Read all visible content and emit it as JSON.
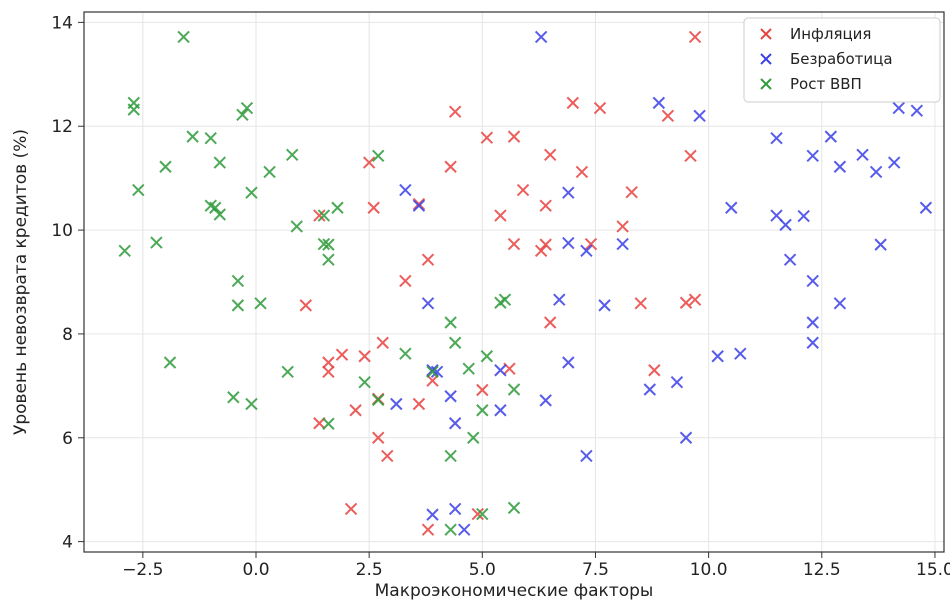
{
  "chart_data": {
    "type": "scatter",
    "xlabel": "Макроэкономические факторы",
    "ylabel": "Уровень невозврата кредитов (%)",
    "xlim": [
      -3.8,
      15.2
    ],
    "ylim": [
      3.8,
      14.2
    ],
    "x_ticks": [
      -2.5,
      0.0,
      2.5,
      5.0,
      7.5,
      10.0,
      12.5,
      15.0
    ],
    "x_tick_labels": [
      "−2.5",
      "0.0",
      "2.5",
      "5.0",
      "7.5",
      "10.0",
      "12.5",
      "15.0"
    ],
    "y_ticks": [
      4,
      6,
      8,
      10,
      12,
      14
    ],
    "y_tick_labels": [
      "4",
      "6",
      "8",
      "10",
      "12",
      "14"
    ],
    "grid": true,
    "legend_position": "top-right",
    "marker": "x",
    "series": [
      {
        "name": "Инфляция",
        "color": "#e8423f",
        "points": [
          [
            9.7,
            13.72
          ],
          [
            7.0,
            12.45
          ],
          [
            7.6,
            12.35
          ],
          [
            4.4,
            12.28
          ],
          [
            9.1,
            12.2
          ],
          [
            5.1,
            11.78
          ],
          [
            5.7,
            11.8
          ],
          [
            9.6,
            11.43
          ],
          [
            6.5,
            11.45
          ],
          [
            2.5,
            11.3
          ],
          [
            4.3,
            11.22
          ],
          [
            7.2,
            11.12
          ],
          [
            5.9,
            10.77
          ],
          [
            8.3,
            10.73
          ],
          [
            3.6,
            10.5
          ],
          [
            2.6,
            10.43
          ],
          [
            6.4,
            10.47
          ],
          [
            1.4,
            10.28
          ],
          [
            5.4,
            10.28
          ],
          [
            8.1,
            10.07
          ],
          [
            5.7,
            9.73
          ],
          [
            6.4,
            9.72
          ],
          [
            7.4,
            9.73
          ],
          [
            6.3,
            9.6
          ],
          [
            3.8,
            9.43
          ],
          [
            3.3,
            9.02
          ],
          [
            9.7,
            8.66
          ],
          [
            9.5,
            8.6
          ],
          [
            1.1,
            8.55
          ],
          [
            8.5,
            8.59
          ],
          [
            6.5,
            8.22
          ],
          [
            2.8,
            7.83
          ],
          [
            1.9,
            7.6
          ],
          [
            2.4,
            7.57
          ],
          [
            1.6,
            7.45
          ],
          [
            5.6,
            7.33
          ],
          [
            8.8,
            7.3
          ],
          [
            1.6,
            7.27
          ],
          [
            3.9,
            7.1
          ],
          [
            5.0,
            6.92
          ],
          [
            2.7,
            6.75
          ],
          [
            3.6,
            6.65
          ],
          [
            2.2,
            6.53
          ],
          [
            1.4,
            6.28
          ],
          [
            2.7,
            6.0
          ],
          [
            2.9,
            5.65
          ],
          [
            2.1,
            4.63
          ],
          [
            4.9,
            4.53
          ],
          [
            3.8,
            4.23
          ]
        ]
      },
      {
        "name": "Безработица",
        "color": "#3a3fe6",
        "points": [
          [
            6.3,
            13.72
          ],
          [
            8.9,
            12.45
          ],
          [
            14.2,
            12.35
          ],
          [
            14.6,
            12.3
          ],
          [
            9.8,
            12.2
          ],
          [
            11.5,
            11.77
          ],
          [
            12.7,
            11.8
          ],
          [
            12.3,
            11.43
          ],
          [
            13.4,
            11.45
          ],
          [
            14.1,
            11.3
          ],
          [
            12.9,
            11.22
          ],
          [
            13.7,
            11.12
          ],
          [
            3.3,
            10.77
          ],
          [
            6.9,
            10.72
          ],
          [
            3.6,
            10.47
          ],
          [
            10.5,
            10.43
          ],
          [
            14.8,
            10.43
          ],
          [
            11.5,
            10.28
          ],
          [
            12.1,
            10.27
          ],
          [
            11.7,
            10.1
          ],
          [
            6.9,
            9.75
          ],
          [
            8.1,
            9.73
          ],
          [
            13.8,
            9.72
          ],
          [
            7.3,
            9.6
          ],
          [
            11.8,
            9.43
          ],
          [
            12.3,
            9.02
          ],
          [
            6.7,
            8.66
          ],
          [
            3.8,
            8.59
          ],
          [
            7.7,
            8.55
          ],
          [
            12.9,
            8.59
          ],
          [
            12.3,
            8.22
          ],
          [
            12.3,
            7.83
          ],
          [
            10.7,
            7.62
          ],
          [
            10.2,
            7.57
          ],
          [
            6.9,
            7.45
          ],
          [
            3.9,
            7.3
          ],
          [
            4.0,
            7.27
          ],
          [
            5.4,
            7.3
          ],
          [
            9.3,
            7.07
          ],
          [
            8.7,
            6.93
          ],
          [
            4.3,
            6.8
          ],
          [
            6.4,
            6.72
          ],
          [
            3.1,
            6.65
          ],
          [
            5.4,
            6.53
          ],
          [
            4.4,
            6.28
          ],
          [
            9.5,
            6.0
          ],
          [
            7.3,
            5.65
          ],
          [
            4.4,
            4.63
          ],
          [
            3.9,
            4.52
          ],
          [
            4.6,
            4.23
          ]
        ]
      },
      {
        "name": "Рост ВВП",
        "color": "#2e9a3a",
        "points": [
          [
            -1.6,
            13.72
          ],
          [
            -2.7,
            12.45
          ],
          [
            -2.7,
            12.32
          ],
          [
            -0.2,
            12.35
          ],
          [
            -0.3,
            12.22
          ],
          [
            -1.4,
            11.8
          ],
          [
            -1.0,
            11.77
          ],
          [
            0.8,
            11.45
          ],
          [
            2.7,
            11.43
          ],
          [
            -0.8,
            11.3
          ],
          [
            -2.0,
            11.22
          ],
          [
            0.3,
            11.12
          ],
          [
            -2.6,
            10.77
          ],
          [
            -0.1,
            10.72
          ],
          [
            -1.0,
            10.47
          ],
          [
            -0.9,
            10.43
          ],
          [
            1.8,
            10.43
          ],
          [
            -0.8,
            10.3
          ],
          [
            1.5,
            10.28
          ],
          [
            0.9,
            10.07
          ],
          [
            -2.2,
            9.76
          ],
          [
            1.5,
            9.73
          ],
          [
            1.6,
            9.72
          ],
          [
            -2.9,
            9.6
          ],
          [
            1.6,
            9.43
          ],
          [
            -0.4,
            9.02
          ],
          [
            5.5,
            8.66
          ],
          [
            5.4,
            8.6
          ],
          [
            0.1,
            8.59
          ],
          [
            -0.4,
            8.55
          ],
          [
            4.3,
            8.22
          ],
          [
            4.4,
            7.83
          ],
          [
            3.3,
            7.62
          ],
          [
            5.1,
            7.57
          ],
          [
            -1.9,
            7.45
          ],
          [
            4.7,
            7.33
          ],
          [
            0.7,
            7.27
          ],
          [
            3.9,
            7.27
          ],
          [
            2.4,
            7.07
          ],
          [
            5.7,
            6.93
          ],
          [
            -0.5,
            6.78
          ],
          [
            2.7,
            6.73
          ],
          [
            -0.1,
            6.65
          ],
          [
            5.0,
            6.53
          ],
          [
            1.6,
            6.27
          ],
          [
            4.8,
            6.0
          ],
          [
            4.3,
            5.65
          ],
          [
            5.7,
            4.65
          ],
          [
            5.0,
            4.53
          ],
          [
            4.3,
            4.23
          ]
        ]
      }
    ]
  }
}
